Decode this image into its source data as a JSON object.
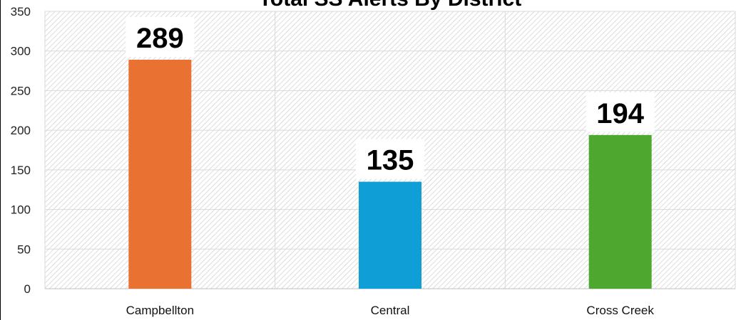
{
  "chart_data": {
    "type": "bar",
    "title": "Total SS Alerts By District",
    "xlabel": "",
    "ylabel": "",
    "categories": [
      "Campbellton",
      "Central",
      "Cross Creek"
    ],
    "values": [
      289,
      135,
      194
    ],
    "bar_colors": [
      "#E97132",
      "#0F9ED5",
      "#4EA72E"
    ],
    "ylim": [
      0,
      350
    ],
    "yticks": [
      0,
      50,
      100,
      150,
      200,
      250,
      300,
      350
    ],
    "grid": true,
    "legend": "none",
    "data_labels": true
  }
}
